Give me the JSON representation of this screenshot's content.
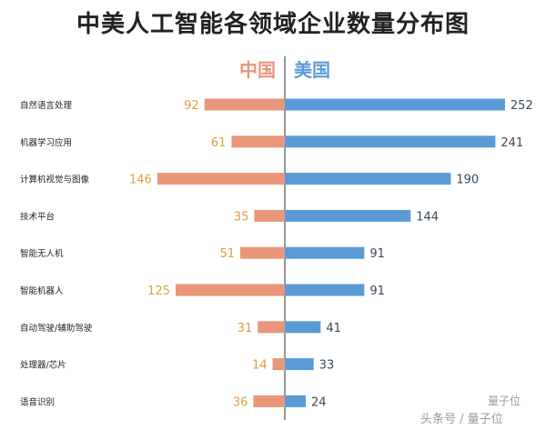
{
  "chart_data": {
    "type": "bar",
    "title": "中美人工智能各领域企业数量分布图",
    "categories": [
      "自然语言处理",
      "机器学习应用",
      "计算机视觉与图像",
      "技术平台",
      "智能无人机",
      "智能机器人",
      "自动驾驶/辅助驾驶",
      "处理器/芯片",
      "语音识别"
    ],
    "series": [
      {
        "name": "中国",
        "values": [
          92,
          61,
          146,
          35,
          51,
          125,
          31,
          14,
          36
        ]
      },
      {
        "name": "美国",
        "values": [
          252,
          241,
          190,
          144,
          91,
          91,
          41,
          33,
          24
        ]
      }
    ],
    "orientation": "horizontal-diverging",
    "legend_placement": "top-center",
    "grid": false
  },
  "colors": {
    "china": "#e9967a",
    "usa": "#5b9bd5",
    "axis": "#777777",
    "category_text": "#222222",
    "china_label": "#e0a040",
    "usa_label": "#3a4a5a"
  },
  "watermark": {
    "top": "量子位",
    "bottom": "头条号 / 量子位"
  }
}
